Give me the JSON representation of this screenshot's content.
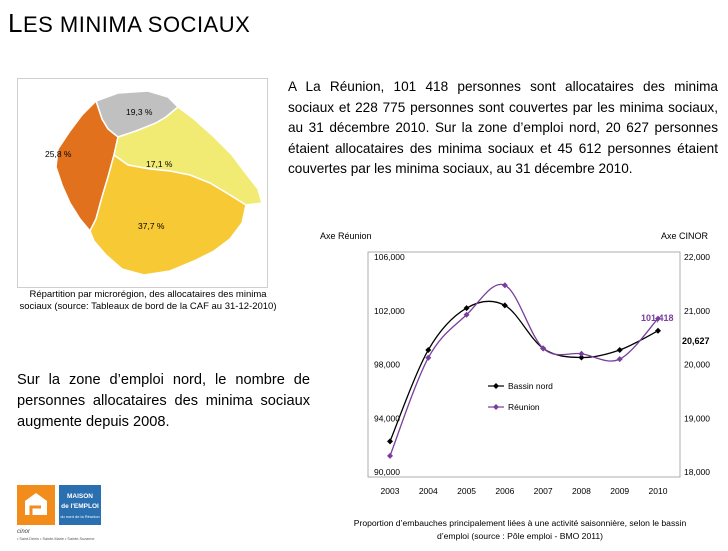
{
  "page": {
    "title_first": "L",
    "title_rest": "ES MINIMA SOCIAUX"
  },
  "map": {
    "regions": [
      {
        "name": "west",
        "pct": "25,8 %",
        "color": "#e2711d"
      },
      {
        "name": "north",
        "pct": "19,3 %",
        "color": "#c0c0c0"
      },
      {
        "name": "east",
        "pct": "17,1 %",
        "color": "#f1ea73"
      },
      {
        "name": "south",
        "pct": "37,7 %",
        "color": "#f7c935"
      }
    ],
    "caption": "Répartition par microrégion, des allocataires des minima sociaux (source: Tableaux de bord de la CAF au 31-12-2010)"
  },
  "intro_text": "A La Réunion, 101 418 personnes sont allocataires des minima sociaux et 228 775 personnes sont couvertes par les minima sociaux, au 31 décembre 2010. Sur la zone d’emploi nord, 20 627 personnes étaient allocataires des minima sociaux et 45 612 personnes étaient couvertes par les minima sociaux, au 31 décembre 2010.",
  "left_text": "Sur la zone d’emploi nord, le nombre de personnes allocataires des minima sociaux augmente depuis 2008.",
  "logo": {
    "line1": "MAISON",
    "line2": "de l'EMPLOI",
    "line3": "du nord de la Réunion",
    "brand": "cinor",
    "footer": "• Saint-Denis • Sainte-Marie • Sainte-Suzanne"
  },
  "chart_data": {
    "type": "line",
    "left_axis_label": "Axe Réunion",
    "right_axis_label": "Axe CINOR",
    "x": [
      "2003",
      "2004",
      "2005",
      "2006",
      "2007",
      "2008",
      "2009",
      "2010"
    ],
    "left_ticks": [
      "90,000",
      "94,000",
      "98,000",
      "102,000",
      "106,000"
    ],
    "right_ticks": [
      "18,000",
      "19,000",
      "20,000",
      "21,000",
      "22,000"
    ],
    "left_range": [
      90000,
      106000
    ],
    "right_range": [
      18000,
      22000
    ],
    "series": [
      {
        "name": "Bassin nord",
        "axis": "right",
        "color": "#000000",
        "marker": "diamond",
        "values": [
          18570,
          20270,
          21050,
          21100,
          20300,
          20130,
          20270,
          20627
        ]
      },
      {
        "name": "Réunion",
        "axis": "left",
        "color": "#7a3e9d",
        "marker": "diamond",
        "values": [
          91200,
          98500,
          101700,
          103900,
          99200,
          98800,
          98400,
          101418
        ]
      }
    ],
    "annotations": [
      {
        "text": "101,418",
        "color": "#7a3e9d"
      },
      {
        "text": "20,627",
        "color": "#000000"
      }
    ],
    "caption": "Proportion d’embauches principalement liées à une activité saisonnière, selon le bassin d’emploi (source : Pôle emploi - BMO 2011)"
  }
}
